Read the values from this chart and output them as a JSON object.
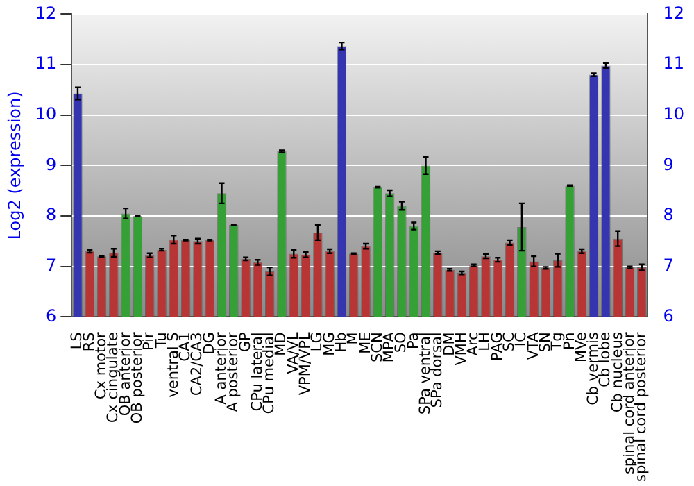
{
  "chart_data": {
    "type": "bar",
    "ylabel": "Log2 (expression)",
    "categories": [
      "LS",
      "RS",
      "Cx motor",
      "Cx cingulate",
      "OB anterior",
      "OB posterior",
      "Pir",
      "Tu",
      "ventral S",
      "CA1",
      "CA2/CA3",
      "DG",
      "A anterior",
      "A posterior",
      "GP",
      "CPu lateral",
      "CPu medial",
      "MD",
      "VA/VL",
      "VPM/VPL",
      "LG",
      "MG",
      "Hb",
      "M",
      "ME",
      "SCN",
      "MPA",
      "SO",
      "Pa",
      "SPa ventral",
      "SPa dorsal",
      "DM",
      "VMH",
      "Arc",
      "LH",
      "PAG",
      "SC",
      "IC",
      "VTA",
      "SN",
      "Tg",
      "Pn",
      "MVe",
      "Cb vermis",
      "Cb lobe",
      "Cb nucleus",
      "spinal cord anterior",
      "spinal cord posterior"
    ],
    "values": [
      10.43,
      7.3,
      7.2,
      7.27,
      8.05,
      8.0,
      7.22,
      7.33,
      7.53,
      7.52,
      7.5,
      7.52,
      8.45,
      7.82,
      7.15,
      7.08,
      6.9,
      9.28,
      7.25,
      7.23,
      7.67,
      7.3,
      11.37,
      7.25,
      7.4,
      8.57,
      8.45,
      8.2,
      7.8,
      9.0,
      7.27,
      6.93,
      6.87,
      7.02,
      7.2,
      7.13,
      7.47,
      7.78,
      7.1,
      6.97,
      7.12,
      8.6,
      7.3,
      10.8,
      10.98,
      7.55,
      6.98,
      6.98
    ],
    "errors": [
      0.12,
      0.03,
      0.01,
      0.08,
      0.1,
      0.01,
      0.04,
      0.02,
      0.08,
      0.01,
      0.05,
      0.01,
      0.2,
      0.01,
      0.03,
      0.05,
      0.08,
      0.02,
      0.08,
      0.05,
      0.15,
      0.04,
      0.07,
      0.01,
      0.05,
      0.01,
      0.06,
      0.08,
      0.07,
      0.17,
      0.03,
      0.02,
      0.03,
      0.02,
      0.04,
      0.04,
      0.05,
      0.47,
      0.1,
      0.02,
      0.13,
      0.01,
      0.04,
      0.03,
      0.05,
      0.15,
      0.02,
      0.06
    ],
    "colors": [
      "#3535b0",
      "#b83535",
      "#b83535",
      "#b83535",
      "#35a035",
      "#35a035",
      "#b83535",
      "#b83535",
      "#b83535",
      "#b83535",
      "#b83535",
      "#b83535",
      "#35a035",
      "#35a035",
      "#b83535",
      "#b83535",
      "#b83535",
      "#35a035",
      "#b83535",
      "#b83535",
      "#b83535",
      "#b83535",
      "#3535b0",
      "#b83535",
      "#b83535",
      "#35a035",
      "#35a035",
      "#35a035",
      "#35a035",
      "#35a035",
      "#b83535",
      "#b83535",
      "#b83535",
      "#b83535",
      "#b83535",
      "#b83535",
      "#b83535",
      "#35a035",
      "#b83535",
      "#b83535",
      "#b83535",
      "#35a035",
      "#b83535",
      "#3535b0",
      "#3535b0",
      "#b83535",
      "#b83535",
      "#b83535"
    ],
    "ylim": [
      6,
      12
    ],
    "yticks": [
      6,
      7,
      8,
      9,
      10,
      11,
      12
    ],
    "y2lim": [
      6,
      12
    ],
    "y2ticks": [
      6,
      7,
      8,
      9,
      10,
      11,
      12
    ],
    "grid": "y"
  }
}
